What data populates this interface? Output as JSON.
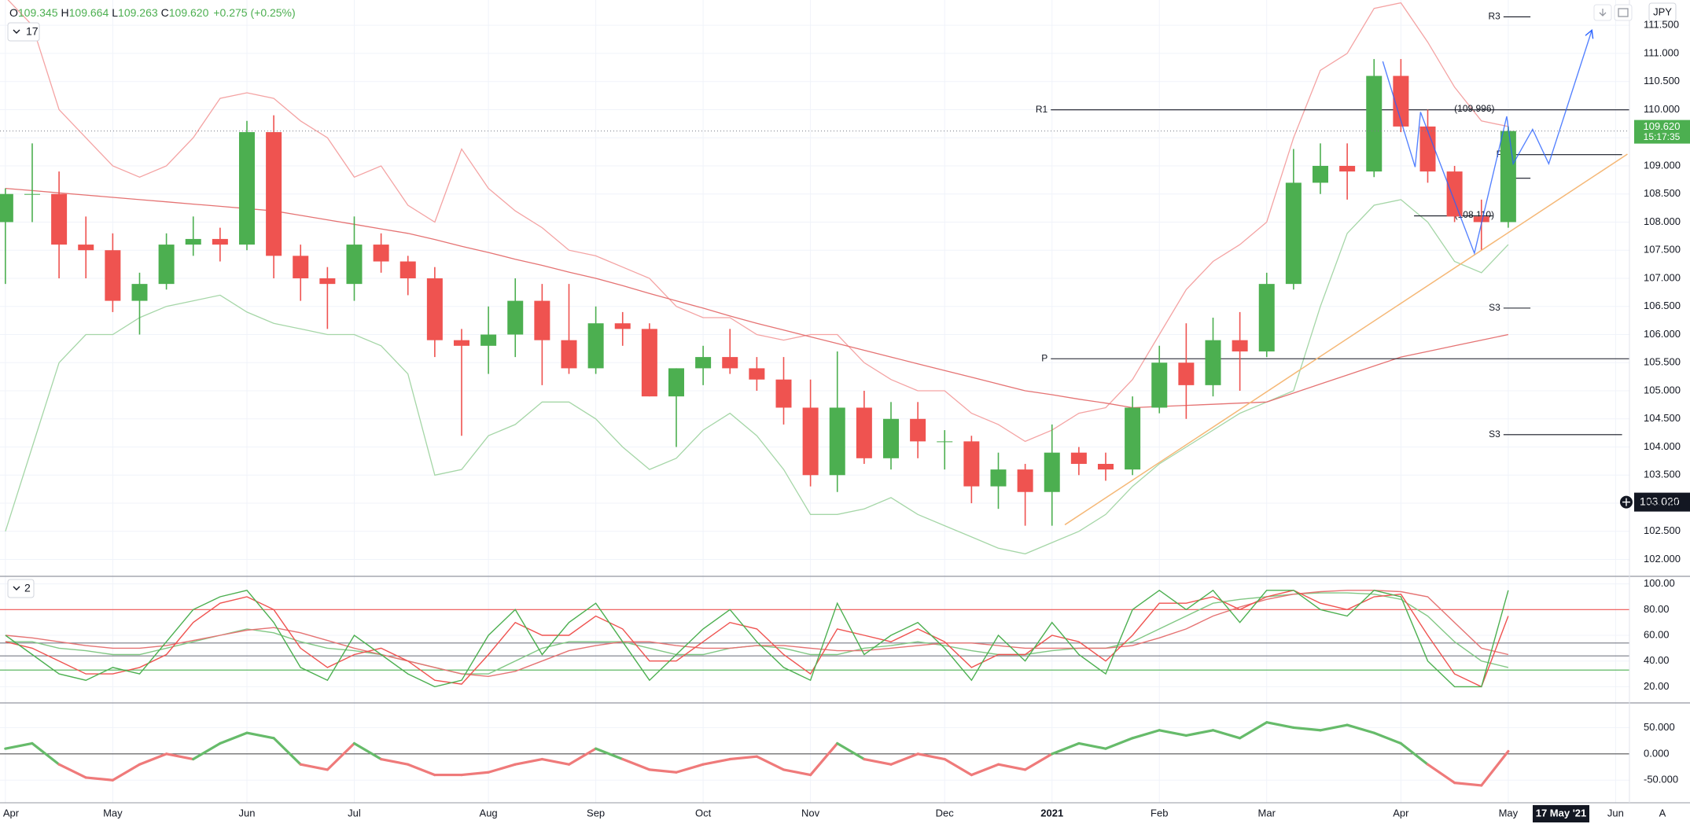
{
  "chart_data": [
    {
      "type": "candlestick",
      "legend": [
        "O",
        "109.345",
        "H",
        "109.664",
        "L",
        "109.263",
        "C",
        "109.620",
        "+0.275 (+0.25%)"
      ],
      "indicator_label": "17",
      "currency": "JPY",
      "categories": [
        "Apr",
        null,
        null,
        null,
        "May",
        null,
        null,
        null,
        null,
        "Jun",
        null,
        null,
        null,
        "Jul",
        null,
        null,
        null,
        null,
        "Aug",
        null,
        null,
        null,
        "Sep",
        null,
        null,
        null,
        "Oct",
        null,
        null,
        null,
        "Nov",
        null,
        null,
        null,
        null,
        "Dec",
        null,
        null,
        null,
        "2021",
        null,
        null,
        null,
        "Feb",
        null,
        null,
        null,
        "Mar",
        null,
        null,
        null,
        null,
        "Apr",
        null,
        null,
        null,
        "May",
        null,
        null,
        null,
        "Jun"
      ],
      "open": [
        108.0,
        108.5,
        108.5,
        107.6,
        107.5,
        106.6,
        106.9,
        107.6,
        107.7,
        107.6,
        109.6,
        107.4,
        107.0,
        106.9,
        107.6,
        107.3,
        107.0,
        105.9,
        105.8,
        106.0,
        106.6,
        105.9,
        105.4,
        106.2,
        106.1,
        104.9,
        105.4,
        105.6,
        105.4,
        105.2,
        104.7,
        103.5,
        104.7,
        103.8,
        104.5,
        104.1,
        104.1,
        103.3,
        103.6,
        103.2,
        103.9,
        103.7,
        103.6,
        104.7,
        105.5,
        105.1,
        105.9,
        105.7,
        106.9,
        108.7,
        109.0,
        108.9,
        110.6,
        109.7,
        108.9,
        108.1,
        108.0,
        null,
        null,
        null,
        null
      ],
      "high": [
        108.6,
        109.4,
        108.9,
        108.1,
        107.8,
        107.1,
        107.8,
        108.1,
        107.9,
        109.8,
        109.9,
        107.6,
        107.2,
        108.1,
        107.8,
        107.4,
        107.2,
        106.1,
        106.5,
        107.0,
        106.9,
        106.9,
        106.5,
        106.4,
        106.2,
        105.4,
        105.8,
        106.1,
        105.6,
        105.6,
        105.2,
        105.7,
        105.0,
        104.8,
        104.8,
        104.3,
        104.2,
        103.9,
        103.7,
        104.4,
        104.0,
        103.9,
        104.9,
        105.8,
        106.2,
        106.3,
        106.4,
        107.1,
        109.3,
        109.4,
        109.4,
        110.9,
        110.9,
        110.0,
        109.0,
        108.4,
        109.7,
        null,
        null,
        null,
        null
      ],
      "low": [
        106.9,
        108.0,
        107.0,
        107.0,
        106.4,
        106.0,
        106.8,
        107.4,
        107.3,
        107.5,
        107.0,
        106.6,
        106.1,
        106.6,
        107.1,
        106.7,
        105.6,
        104.2,
        105.3,
        105.6,
        105.1,
        105.3,
        105.3,
        105.8,
        104.9,
        104.0,
        105.1,
        105.3,
        105.0,
        104.4,
        103.3,
        103.2,
        103.7,
        103.6,
        103.8,
        103.6,
        103.0,
        102.9,
        102.6,
        102.6,
        103.5,
        103.4,
        103.5,
        104.6,
        104.5,
        104.9,
        105.0,
        105.6,
        106.8,
        108.5,
        108.4,
        108.8,
        109.6,
        108.7,
        108.0,
        107.5,
        107.9,
        null,
        null,
        null,
        null
      ],
      "close": [
        108.5,
        108.5,
        107.6,
        107.5,
        106.6,
        106.9,
        107.6,
        107.7,
        107.6,
        109.6,
        107.4,
        107.0,
        106.9,
        107.6,
        107.3,
        107.0,
        105.9,
        105.8,
        106.0,
        106.6,
        105.9,
        105.4,
        106.2,
        106.1,
        104.9,
        105.4,
        105.6,
        105.4,
        105.2,
        104.7,
        103.5,
        104.7,
        103.8,
        104.5,
        104.1,
        104.1,
        103.3,
        103.6,
        103.2,
        103.9,
        103.7,
        103.6,
        104.7,
        105.5,
        105.1,
        105.9,
        105.7,
        106.9,
        108.7,
        109.0,
        108.9,
        110.6,
        109.7,
        108.9,
        108.1,
        108.0,
        109.62,
        null,
        null,
        null,
        null
      ],
      "up_color": "#4caf50",
      "down_color": "#ef5350",
      "overlays": [
        {
          "color": "#f4a3a3",
          "values": [
            112,
            111.5,
            110,
            109.5,
            109,
            108.8,
            109,
            109.5,
            110.2,
            110.3,
            110.2,
            109.8,
            109.5,
            108.8,
            109.0,
            108.3,
            108.0,
            109.3,
            108.6,
            108.2,
            107.9,
            107.5,
            107.4,
            107.2,
            107.0,
            106.5,
            106.3,
            106.3,
            106.0,
            105.9,
            106.0,
            106.0,
            105.5,
            105.2,
            105.0,
            105.0,
            104.6,
            104.4,
            104.1,
            104.3,
            104.6,
            104.7,
            105.2,
            106.0,
            106.8,
            107.3,
            107.6,
            108.0,
            109.5,
            110.7,
            111.0,
            111.8,
            111.9,
            111.2,
            110.4,
            109.8,
            109.7,
            null,
            null,
            null,
            null
          ]
        },
        {
          "color": "#a5d6a7",
          "values": [
            102.5,
            104,
            105.5,
            106,
            106,
            106.3,
            106.5,
            106.6,
            106.7,
            106.4,
            106.2,
            106.1,
            106.0,
            106.0,
            105.8,
            105.3,
            103.5,
            103.6,
            104.2,
            104.4,
            104.8,
            104.8,
            104.5,
            104.0,
            103.6,
            103.8,
            104.3,
            104.6,
            104.2,
            103.6,
            102.8,
            102.8,
            102.9,
            103.1,
            102.8,
            102.6,
            102.4,
            102.2,
            102.1,
            102.3,
            102.5,
            102.8,
            103.3,
            103.7,
            104.0,
            104.3,
            104.6,
            104.8,
            105.0,
            106.5,
            107.8,
            108.3,
            108.4,
            108.0,
            107.3,
            107.1,
            107.6,
            null,
            null,
            null,
            null
          ]
        },
        {
          "color": "#e57373",
          "values": [
            108.6,
            108.56,
            108.52,
            108.48,
            108.44,
            108.4,
            108.36,
            108.32,
            108.28,
            108.24,
            108.2,
            108.12,
            108.04,
            107.96,
            107.88,
            107.8,
            107.69,
            107.57,
            107.46,
            107.34,
            107.23,
            107.11,
            107.0,
            106.87,
            106.73,
            106.6,
            106.47,
            106.33,
            106.2,
            106.08,
            105.96,
            105.84,
            105.72,
            105.6,
            105.48,
            105.36,
            105.24,
            105.12,
            105.0,
            104.93,
            104.85,
            104.78,
            104.7,
            104.72,
            104.74,
            104.76,
            104.78,
            104.8,
            104.96,
            105.12,
            105.28,
            105.44,
            105.6,
            105.7,
            105.8,
            105.9,
            106.0,
            null,
            null,
            null,
            null
          ]
        }
      ],
      "levels": [
        {
          "label": "R1",
          "value": 109.996,
          "value_label": "(109.996)"
        },
        {
          "label": "P",
          "value": 105.57
        },
        {
          "label": "R3",
          "value": 111.65
        },
        {
          "label": "S3",
          "value": 106.47
        },
        {
          "label": "S3",
          "value": 104.22
        },
        {
          "label": "P",
          "value": 109.2
        },
        {
          "value": 108.78
        },
        {
          "value": 108.11,
          "value_label": "(108.110)"
        }
      ],
      "last_price": {
        "value": 109.62,
        "label": "109.620",
        "time": "15:17:35",
        "color": "#4caf50"
      },
      "crosshair_price": {
        "value": 103.02,
        "label": "103.020"
      },
      "crosshair_date": "17 May '21",
      "axis_mode_label": "A",
      "ylim": [
        101.7,
        111.95
      ],
      "yticks": [
        {
          "value": 102,
          "label": "102.000"
        },
        {
          "value": 102.5,
          "label": "102.500"
        },
        {
          "value": 103,
          "label": "103.000"
        },
        {
          "value": 103.5,
          "label": "103.500"
        },
        {
          "value": 104,
          "label": "104.000"
        },
        {
          "value": 104.5,
          "label": "104.500"
        },
        {
          "value": 105,
          "label": "105.000"
        },
        {
          "value": 105.5,
          "label": "105.500"
        },
        {
          "value": 106,
          "label": "106.000"
        },
        {
          "value": 106.5,
          "label": "106.500"
        },
        {
          "value": 107,
          "label": "107.000"
        },
        {
          "value": 107.5,
          "label": "107.500"
        },
        {
          "value": 108,
          "label": "108.000"
        },
        {
          "value": 108.5,
          "label": "108.500"
        },
        {
          "value": 109,
          "label": "109.000"
        },
        {
          "value": 109.5,
          "label": "109.500"
        },
        {
          "value": 110,
          "label": "110.000"
        },
        {
          "value": 110.5,
          "label": "110.500"
        },
        {
          "value": 111,
          "label": "111.000"
        },
        {
          "value": 111.5,
          "label": "111.500"
        }
      ],
      "grid": true
    },
    {
      "type": "line",
      "indicator_label": "2",
      "series": [
        {
          "color": "#81c784",
          "values": [
            55,
            55,
            50,
            48,
            45,
            45,
            50,
            55,
            60,
            65,
            62,
            55,
            50,
            48,
            45,
            40,
            35,
            30,
            30,
            40,
            50,
            55,
            55,
            55,
            50,
            45,
            45,
            50,
            52,
            50,
            45,
            45,
            50,
            52,
            55,
            52,
            48,
            45,
            45,
            48,
            50,
            50,
            55,
            65,
            75,
            85,
            88,
            90,
            92,
            93,
            93,
            92,
            88,
            75,
            55,
            40,
            35,
            null,
            null,
            null,
            null
          ]
        },
        {
          "color": "#e57373",
          "values": [
            60,
            58,
            55,
            52,
            50,
            50,
            52,
            56,
            60,
            64,
            66,
            62,
            56,
            50,
            45,
            40,
            35,
            30,
            28,
            32,
            40,
            48,
            52,
            55,
            55,
            52,
            50,
            50,
            52,
            52,
            50,
            48,
            48,
            50,
            52,
            54,
            54,
            52,
            50,
            50,
            50,
            50,
            52,
            58,
            65,
            75,
            82,
            88,
            92,
            94,
            95,
            95,
            94,
            90,
            70,
            50,
            45,
            null,
            null,
            null,
            null
          ]
        },
        {
          "color": "#ef5350",
          "values": [
            55,
            50,
            40,
            30,
            30,
            35,
            45,
            70,
            85,
            90,
            80,
            50,
            35,
            45,
            50,
            40,
            25,
            22,
            45,
            70,
            60,
            60,
            75,
            65,
            40,
            40,
            55,
            70,
            65,
            45,
            30,
            65,
            60,
            55,
            65,
            55,
            35,
            45,
            45,
            60,
            55,
            40,
            60,
            85,
            85,
            90,
            80,
            90,
            95,
            85,
            80,
            90,
            92,
            60,
            30,
            20,
            75,
            null,
            null,
            null,
            null
          ]
        },
        {
          "color": "#4caf50",
          "values": [
            60,
            45,
            30,
            25,
            35,
            30,
            55,
            80,
            90,
            95,
            70,
            35,
            25,
            60,
            45,
            30,
            20,
            25,
            60,
            80,
            45,
            70,
            85,
            55,
            25,
            45,
            65,
            80,
            55,
            35,
            25,
            85,
            45,
            60,
            70,
            50,
            25,
            60,
            40,
            70,
            45,
            30,
            80,
            95,
            80,
            95,
            70,
            95,
            95,
            80,
            75,
            95,
            90,
            40,
            20,
            20,
            95,
            null,
            null,
            null,
            null
          ]
        }
      ],
      "hlines": [
        {
          "value": 80,
          "color": "#ef5350"
        },
        {
          "value": 54,
          "color": "#787b86"
        },
        {
          "value": 44,
          "color": "#787b86"
        },
        {
          "value": 33,
          "color": "#4caf50"
        }
      ],
      "ylim": [
        7.4,
        105.9
      ],
      "yticks": [
        {
          "value": 20,
          "label": "20.00"
        },
        {
          "value": 40,
          "label": "40.00"
        },
        {
          "value": 60,
          "label": "60.00"
        },
        {
          "value": 80,
          "label": "80.00"
        },
        {
          "value": 100,
          "label": "100.00"
        }
      ],
      "grid": true
    },
    {
      "type": "signed_line",
      "values": [
        10,
        20,
        -20,
        -45,
        -50,
        -20,
        0,
        -10,
        20,
        40,
        30,
        -20,
        -30,
        20,
        -10,
        -20,
        -40,
        -40,
        -35,
        -20,
        -10,
        -20,
        10,
        -10,
        -30,
        -35,
        -20,
        -10,
        -5,
        -30,
        -40,
        20,
        -10,
        -20,
        0,
        -10,
        -40,
        -20,
        -30,
        0,
        20,
        10,
        30,
        45,
        35,
        45,
        30,
        60,
        50,
        45,
        55,
        40,
        20,
        -20,
        -55,
        -60,
        5,
        null,
        null,
        null,
        null
      ],
      "positive_color": "#66bb6a",
      "negative_color": "#ef7a7a",
      "hlines": [
        {
          "value": 0,
          "color": "#555555"
        }
      ],
      "ylim": [
        -93,
        97
      ],
      "yticks": [
        {
          "value": -50,
          "label": "-50.000"
        },
        {
          "value": 0,
          "label": "0.000"
        },
        {
          "value": 50,
          "label": "50.000"
        }
      ],
      "grid": true
    }
  ]
}
